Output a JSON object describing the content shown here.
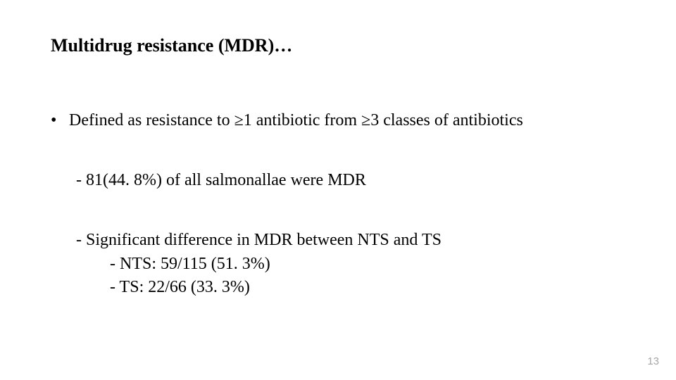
{
  "title": "Multidrug resistance (MDR)…",
  "bullet_main": "Defined as resistance to ≥1 antibiotic from ≥3 classes of antibiotics",
  "sub_a": "- 81(44. 8%) of all salmonallae were MDR",
  "sub_b": "- Significant difference in MDR between NTS and TS",
  "sub_b1": "- NTS: 59/115 (51. 3%)",
  "sub_b2": "- TS: 22/66 (33. 3%)",
  "page_number": "13",
  "colors": {
    "background": "#ffffff",
    "text": "#000000",
    "pagenum": "#a6a6a6"
  }
}
